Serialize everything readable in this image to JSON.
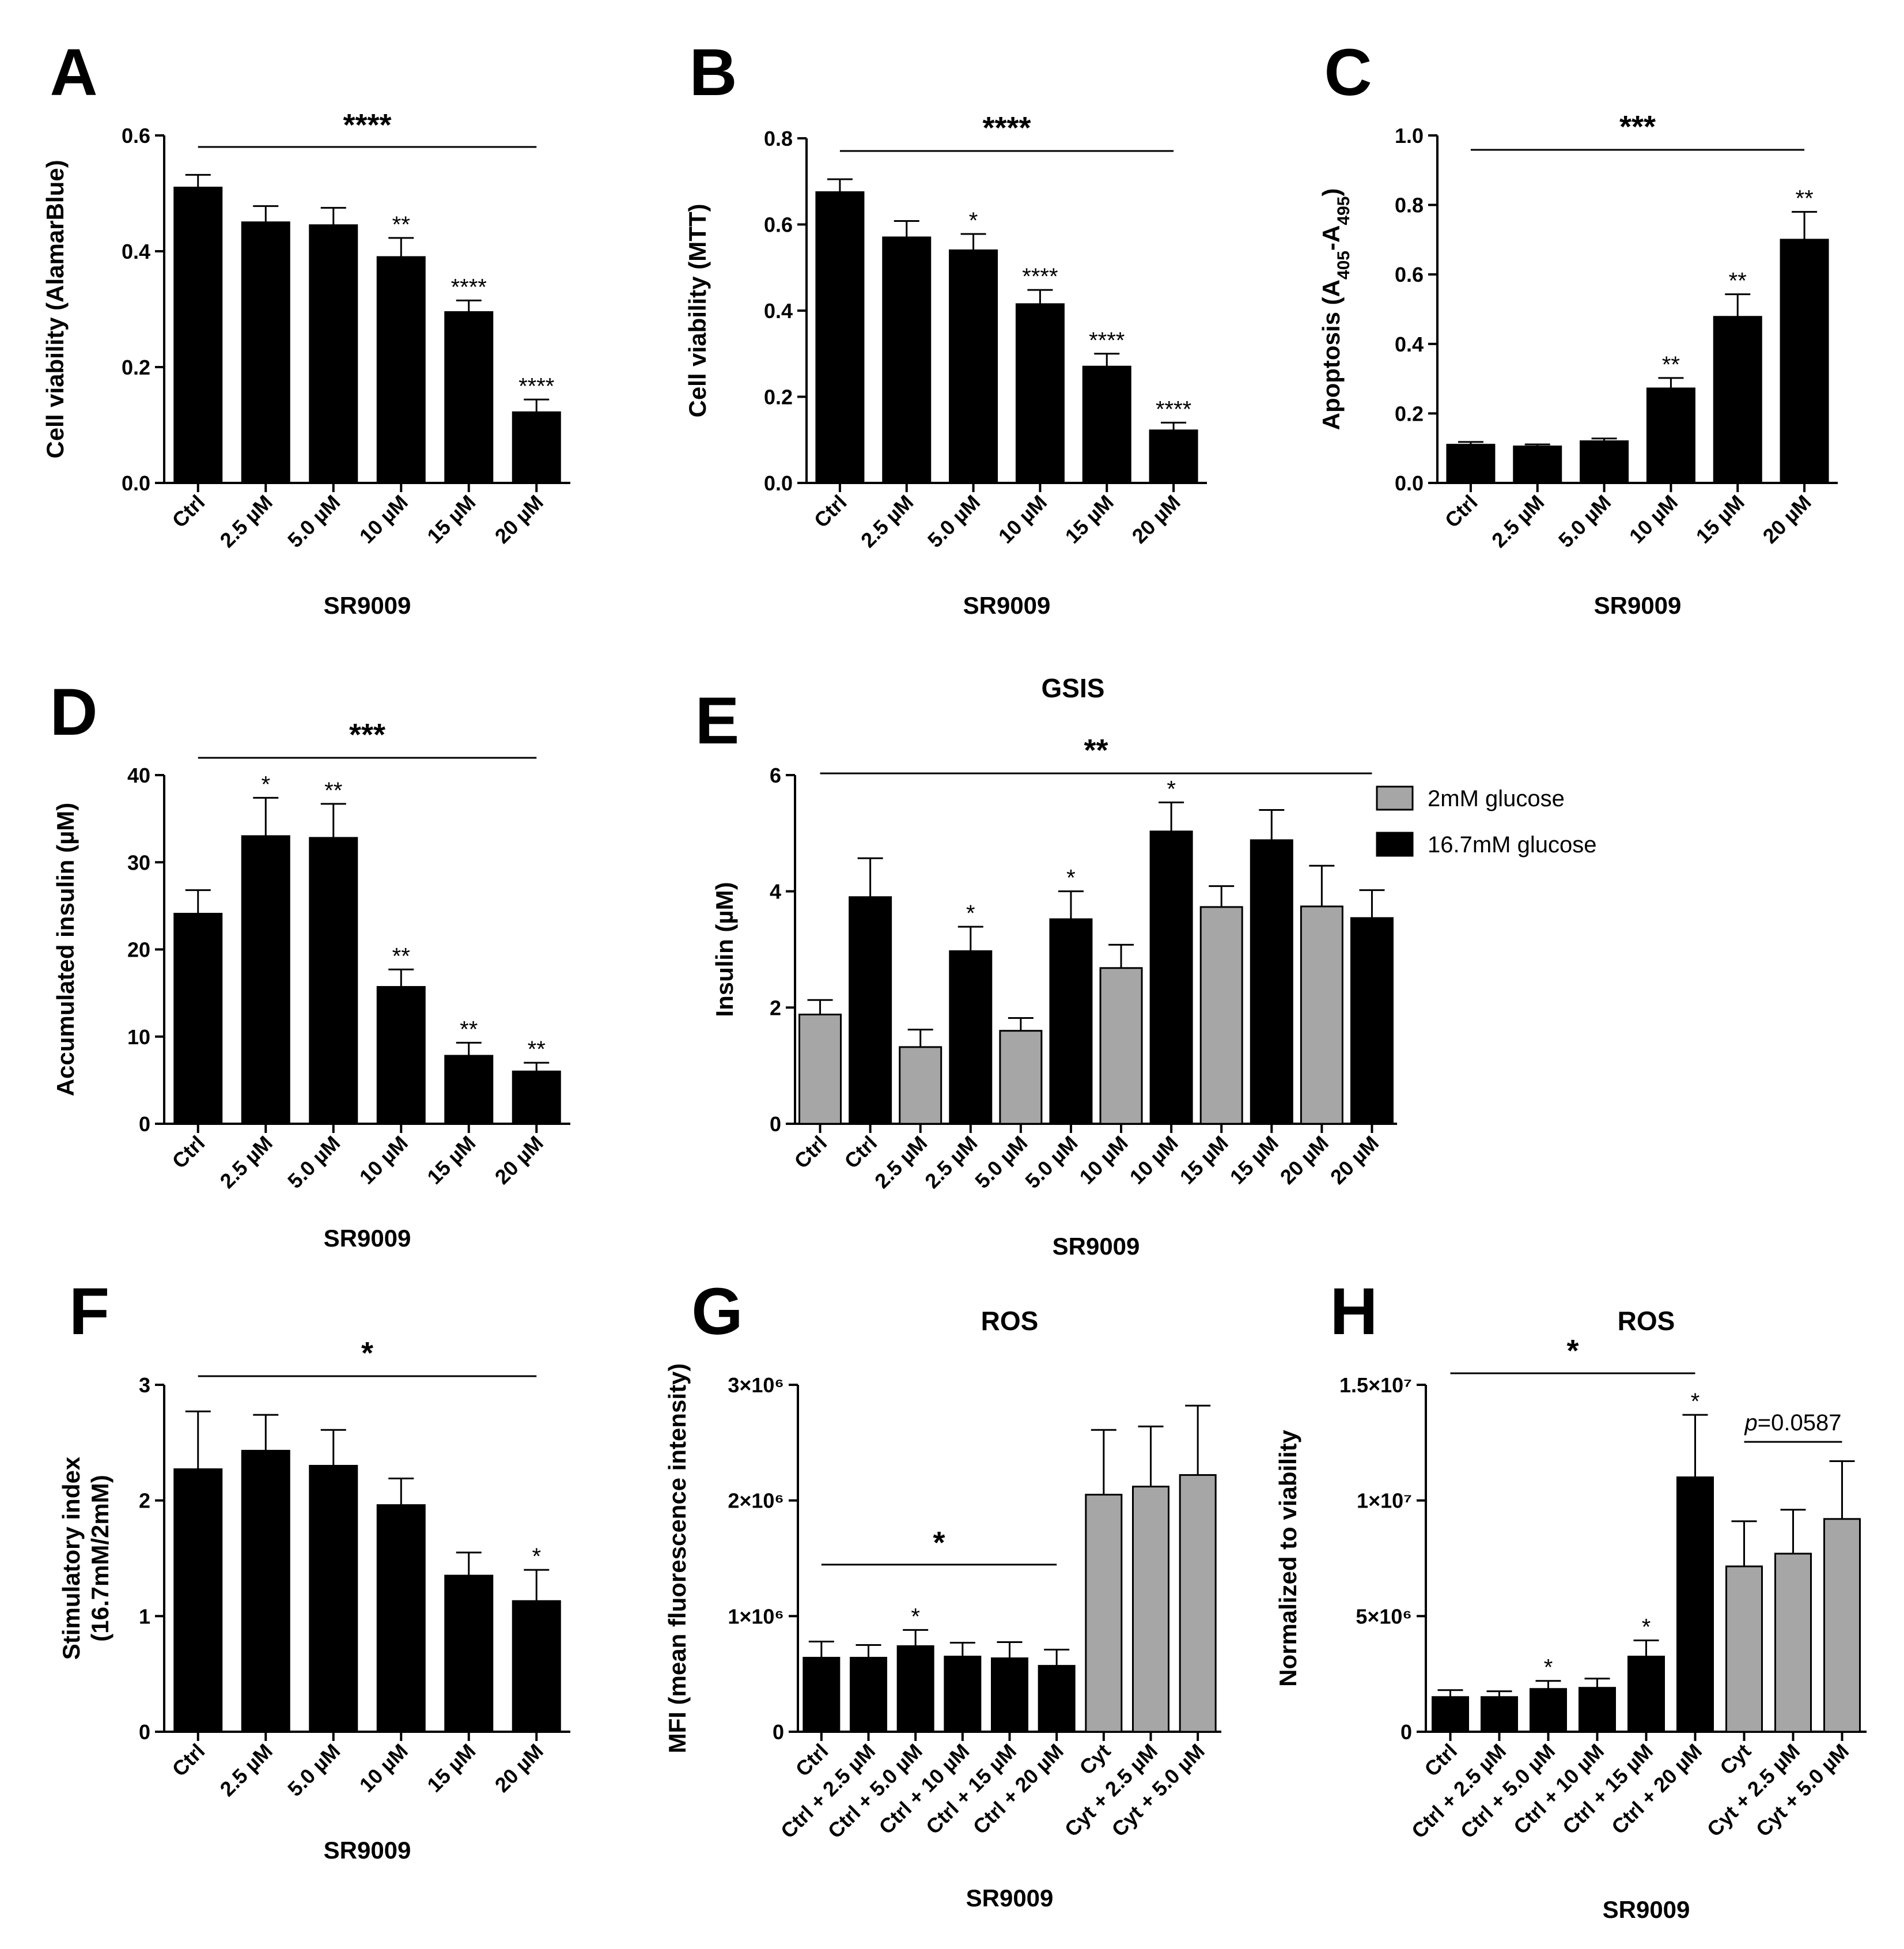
{
  "chart_data": [
    {
      "panel": "A",
      "type": "bar",
      "title": "",
      "xlabel": "SR9009",
      "ylabel": "Cell viability (AlamarBlue)",
      "ylim": [
        0,
        0.6
      ],
      "yticks": [
        "0.0",
        "0.2",
        "0.4",
        "0.6"
      ],
      "ytick_values": [
        0,
        0.2,
        0.4,
        0.6
      ],
      "categories": [
        "Ctrl",
        "2.5 µM",
        "5.0 µM",
        "10 µM",
        "15 µM",
        "20 µM"
      ],
      "values": [
        0.51,
        0.45,
        0.445,
        0.39,
        0.295,
        0.122
      ],
      "errors": [
        0.022,
        0.028,
        0.03,
        0.033,
        0.02,
        0.022
      ],
      "colors": [
        "#000000",
        "#000000",
        "#000000",
        "#000000",
        "#000000",
        "#000000"
      ],
      "bar_labels": [
        "",
        "",
        "",
        "**",
        "****",
        "****"
      ],
      "bracket": {
        "label": "****",
        "from": 0,
        "to": 5
      }
    },
    {
      "panel": "B",
      "type": "bar",
      "title": "",
      "xlabel": "SR9009",
      "ylabel": "Cell viability (MTT)",
      "ylim": [
        0,
        0.8
      ],
      "yticks": [
        "0.0",
        "0.2",
        "0.4",
        "0.6",
        "0.8"
      ],
      "ytick_values": [
        0,
        0.2,
        0.4,
        0.6,
        0.8
      ],
      "categories": [
        "Ctrl",
        "2.5 µM",
        "5.0 µM",
        "10 µM",
        "15 µM",
        "20 µM"
      ],
      "values": [
        0.675,
        0.57,
        0.54,
        0.415,
        0.27,
        0.122
      ],
      "errors": [
        0.03,
        0.038,
        0.038,
        0.033,
        0.03,
        0.018
      ],
      "colors": [
        "#000000",
        "#000000",
        "#000000",
        "#000000",
        "#000000",
        "#000000"
      ],
      "bar_labels": [
        "",
        "",
        "*",
        "****",
        "****",
        "****"
      ],
      "bracket": {
        "label": "****",
        "from": 0,
        "to": 5
      }
    },
    {
      "panel": "C",
      "type": "bar",
      "title": "",
      "xlabel": "SR9009",
      "ylabel": "Apoptosis (A405-A495)",
      "ylim": [
        0,
        1.0
      ],
      "yticks": [
        "0.0",
        "0.2",
        "0.4",
        "0.6",
        "0.8",
        "1.0"
      ],
      "ytick_values": [
        0,
        0.2,
        0.4,
        0.6,
        0.8,
        1.0
      ],
      "categories": [
        "Ctrl",
        "2.5 µM",
        "5.0 µM",
        "10 µM",
        "15 µM",
        "20 µM"
      ],
      "values": [
        0.11,
        0.105,
        0.12,
        0.272,
        0.478,
        0.7
      ],
      "errors": [
        0.008,
        0.006,
        0.008,
        0.03,
        0.065,
        0.08
      ],
      "colors": [
        "#000000",
        "#000000",
        "#000000",
        "#000000",
        "#000000",
        "#000000"
      ],
      "bar_labels": [
        "",
        "",
        "",
        "**",
        "**",
        "**"
      ],
      "bracket": {
        "label": "***",
        "from": 0,
        "to": 5
      }
    },
    {
      "panel": "D",
      "type": "bar",
      "title": "",
      "xlabel": "SR9009",
      "ylabel": "Accumulated insulin (µM)",
      "ylim": [
        0,
        40
      ],
      "yticks": [
        "0",
        "10",
        "20",
        "30",
        "40"
      ],
      "ytick_values": [
        0,
        10,
        20,
        30,
        40
      ],
      "categories": [
        "Ctrl",
        "2.5 µM",
        "5.0 µM",
        "10 µM",
        "15 µM",
        "20 µM"
      ],
      "values": [
        24.1,
        33.0,
        32.8,
        15.7,
        7.8,
        6.0
      ],
      "errors": [
        2.7,
        4.4,
        3.9,
        2.0,
        1.5,
        1.0
      ],
      "colors": [
        "#000000",
        "#000000",
        "#000000",
        "#000000",
        "#000000",
        "#000000"
      ],
      "bar_labels": [
        "",
        "*",
        "**",
        "**",
        "**",
        "**"
      ],
      "bracket": {
        "label": "***",
        "from": 0,
        "to": 5
      }
    },
    {
      "panel": "E",
      "type": "bar",
      "title": "GSIS",
      "xlabel": "SR9009",
      "ylabel": "Insulin (µM)",
      "ylim": [
        0,
        6
      ],
      "yticks": [
        "0",
        "2",
        "4",
        "6"
      ],
      "ytick_values": [
        0,
        2,
        4,
        6
      ],
      "categories": [
        "Ctrl",
        "Ctrl",
        "2.5 µM",
        "2.5 µM",
        "5.0 µM",
        "5.0 µM",
        "10 µM",
        "10 µM",
        "15 µM",
        "15 µM",
        "20 µM",
        "20 µM"
      ],
      "values": [
        1.88,
        3.9,
        1.32,
        2.97,
        1.6,
        3.52,
        2.68,
        5.03,
        3.73,
        4.88,
        3.74,
        3.54
      ],
      "errors": [
        0.25,
        0.67,
        0.3,
        0.42,
        0.22,
        0.48,
        0.4,
        0.5,
        0.36,
        0.52,
        0.7,
        0.48
      ],
      "colors": [
        "#a6a6a6",
        "#000000",
        "#a6a6a6",
        "#000000",
        "#a6a6a6",
        "#000000",
        "#a6a6a6",
        "#000000",
        "#a6a6a6",
        "#000000",
        "#a6a6a6",
        "#000000"
      ],
      "bar_labels": [
        "",
        "",
        "",
        "*",
        "",
        "*",
        "",
        "*",
        "",
        "",
        "",
        ""
      ],
      "bracket": {
        "label": "**",
        "from": 0,
        "to": 11
      },
      "legend": [
        {
          "label": "2mM glucose",
          "color": "#a6a6a6"
        },
        {
          "label": "16.7mM glucose",
          "color": "#000000"
        }
      ]
    },
    {
      "panel": "F",
      "type": "bar",
      "title": "",
      "xlabel": "SR9009",
      "ylabel": "Stimulatory index (16.7mM/2mM)",
      "ylim": [
        0,
        3
      ],
      "yticks": [
        "0",
        "1",
        "2",
        "3"
      ],
      "ytick_values": [
        0,
        1,
        2,
        3
      ],
      "categories": [
        "Ctrl",
        "2.5 µM",
        "5.0 µM",
        "10 µM",
        "15 µM",
        "20 µM"
      ],
      "values": [
        2.27,
        2.43,
        2.3,
        1.96,
        1.35,
        1.13
      ],
      "errors": [
        0.5,
        0.31,
        0.31,
        0.23,
        0.2,
        0.27
      ],
      "colors": [
        "#000000",
        "#000000",
        "#000000",
        "#000000",
        "#000000",
        "#000000"
      ],
      "bar_labels": [
        "",
        "",
        "",
        "",
        "",
        "*"
      ],
      "bracket": {
        "label": "*",
        "from": 0,
        "to": 5
      }
    },
    {
      "panel": "G",
      "type": "bar",
      "title": "ROS",
      "xlabel": "SR9009",
      "ylabel": "MFI (mean fluorescence intensity)",
      "ylim": [
        0,
        3000000
      ],
      "yticks": [
        "0",
        "1×10⁶",
        "2×10⁶",
        "3×10⁶"
      ],
      "ytick_values": [
        0,
        1000000,
        2000000,
        3000000
      ],
      "categories": [
        "Ctrl",
        "Ctrl + 2.5 µM",
        "Ctrl + 5.0 µM",
        "Ctrl + 10 µM",
        "Ctrl + 15 µM",
        "Ctrl + 20 µM",
        "Cyt",
        "Cyt + 2.5 µM",
        "Cyt + 5.0 µM"
      ],
      "values": [
        640000,
        640000,
        740000,
        650000,
        635000,
        570000,
        2050000,
        2120000,
        2220000
      ],
      "errors": [
        140000,
        110000,
        140000,
        120000,
        140000,
        140000,
        560000,
        520000,
        600000
      ],
      "colors": [
        "#000000",
        "#000000",
        "#000000",
        "#000000",
        "#000000",
        "#000000",
        "#a6a6a6",
        "#a6a6a6",
        "#a6a6a6"
      ],
      "bar_labels": [
        "",
        "",
        "*",
        "",
        "",
        "",
        "",
        "",
        ""
      ],
      "bracket": {
        "label": "*",
        "from": 0,
        "to": 5
      }
    },
    {
      "panel": "H",
      "type": "bar",
      "title": "ROS",
      "xlabel": "SR9009",
      "ylabel": "Normalized to viability",
      "ylim": [
        0,
        15000000
      ],
      "yticks": [
        "0",
        "5×10⁶",
        "1×10⁷",
        "1.5×10⁷"
      ],
      "ytick_values": [
        0,
        5000000,
        10000000,
        15000000
      ],
      "categories": [
        "Ctrl",
        "Ctrl + 2.5 µM",
        "Ctrl + 5.0 µM",
        "Ctrl + 10 µM",
        "Ctrl + 15 µM",
        "Ctrl + 20 µM",
        "Cyt",
        "Cyt + 2.5 µM",
        "Cyt + 5.0 µM"
      ],
      "values": [
        1500000,
        1500000,
        1850000,
        1900000,
        3250000,
        11000000,
        7150000,
        7700000,
        9200000
      ],
      "errors": [
        300000,
        250000,
        350000,
        400000,
        700000,
        2700000,
        1950000,
        1900000,
        2500000
      ],
      "colors": [
        "#000000",
        "#000000",
        "#000000",
        "#000000",
        "#000000",
        "#000000",
        "#a6a6a6",
        "#a6a6a6",
        "#a6a6a6"
      ],
      "bar_labels": [
        "",
        "",
        "*",
        "",
        "*",
        "*",
        "",
        "",
        ""
      ],
      "bracket": {
        "label": "*",
        "from": 0,
        "to": 5
      },
      "bracket2": {
        "label_italic": "p",
        "label_rest": "=0.0587",
        "from": 6,
        "to": 8
      }
    }
  ]
}
